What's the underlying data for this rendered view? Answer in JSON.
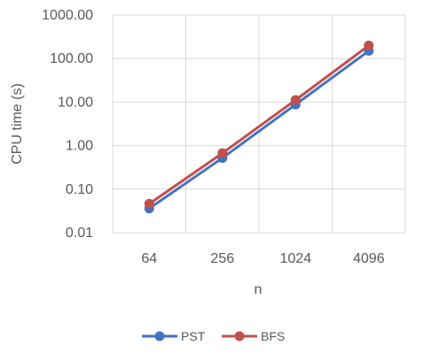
{
  "chart_data": {
    "type": "line",
    "x_scale": "categorical",
    "y_scale": "log10",
    "categories": [
      "64",
      "256",
      "1024",
      "4096"
    ],
    "series": [
      {
        "name": "PST",
        "color": "#4472C4",
        "values": [
          0.036,
          0.52,
          8.8,
          150
        ]
      },
      {
        "name": "BFS",
        "color": "#C0504D",
        "values": [
          0.046,
          0.67,
          11.2,
          200
        ]
      }
    ],
    "ylim": [
      0.01,
      1000
    ],
    "yticks": [
      "0.01",
      "0.10",
      "1.00",
      "10.00",
      "100.00",
      "1000.00"
    ],
    "xlabel": "n",
    "ylabel": "CPU time (s)",
    "grid": true,
    "legend_position": "bottom",
    "marker": "circle"
  }
}
